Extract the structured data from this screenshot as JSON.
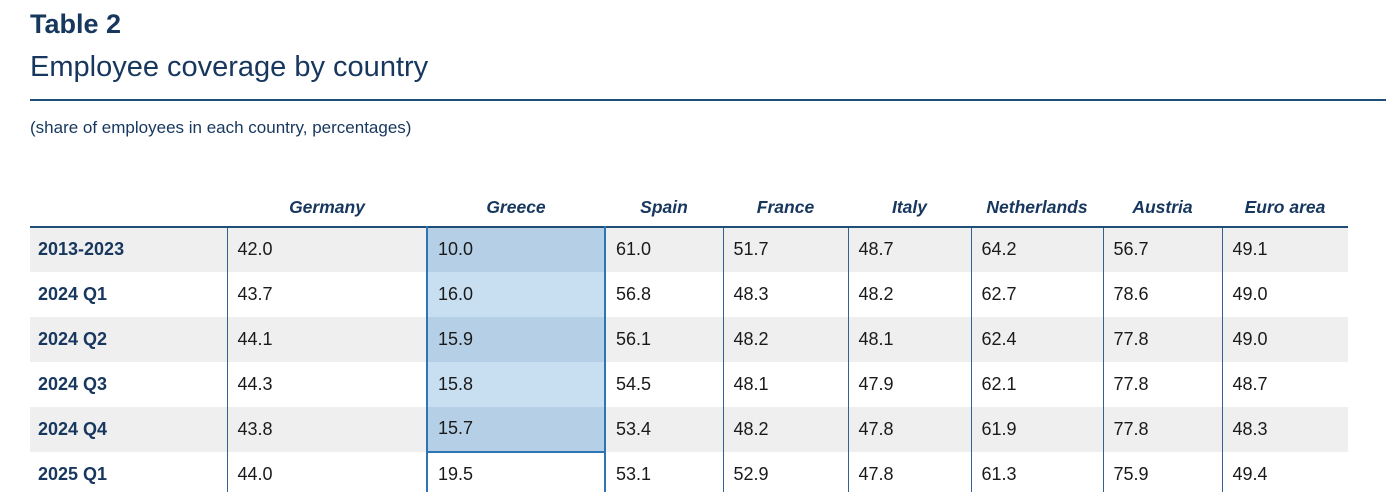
{
  "page": {
    "title": "Table 2",
    "subtitle": "Employee coverage by country",
    "note": "(share of employees in each country, percentages)"
  },
  "table": {
    "columns": [
      "Germany",
      "Greece",
      "Spain",
      "France",
      "Italy",
      "Netherlands",
      "Austria",
      "Euro area"
    ],
    "rows": [
      {
        "label": "2013-2023",
        "values": [
          "42.0",
          "10.0",
          "61.0",
          "51.7",
          "48.7",
          "64.2",
          "56.7",
          "49.1"
        ]
      },
      {
        "label": "2024 Q1",
        "values": [
          "43.7",
          "16.0",
          "56.8",
          "48.3",
          "48.2",
          "62.7",
          "78.6",
          "49.0"
        ]
      },
      {
        "label": "2024 Q2",
        "values": [
          "44.1",
          "15.9",
          "56.1",
          "48.2",
          "48.1",
          "62.4",
          "77.8",
          "49.0"
        ]
      },
      {
        "label": "2024 Q3",
        "values": [
          "44.3",
          "15.8",
          "54.5",
          "48.1",
          "47.9",
          "62.1",
          "77.8",
          "48.7"
        ]
      },
      {
        "label": "2024 Q4",
        "values": [
          "43.8",
          "15.7",
          "53.4",
          "48.2",
          "47.8",
          "61.9",
          "77.8",
          "48.3"
        ]
      },
      {
        "label": "2025 Q1",
        "values": [
          "44.0",
          "19.5",
          "53.1",
          "52.9",
          "47.8",
          "61.3",
          "75.9",
          "49.4"
        ]
      }
    ],
    "highlight": {
      "column": "Greece",
      "column_index": 1,
      "filled_row_count": 5
    }
  },
  "colors": {
    "heading_navy": "#17375e",
    "line_navy": "#1f4e79",
    "column_separator": "#366092",
    "highlight_border": "#2e75b6",
    "highlight_fill_gray_row": "#b5cfe7",
    "highlight_fill_white_row": "#c8def1",
    "row_alternate_gray": "#efefef",
    "cell_text": "#1a1a1a"
  }
}
